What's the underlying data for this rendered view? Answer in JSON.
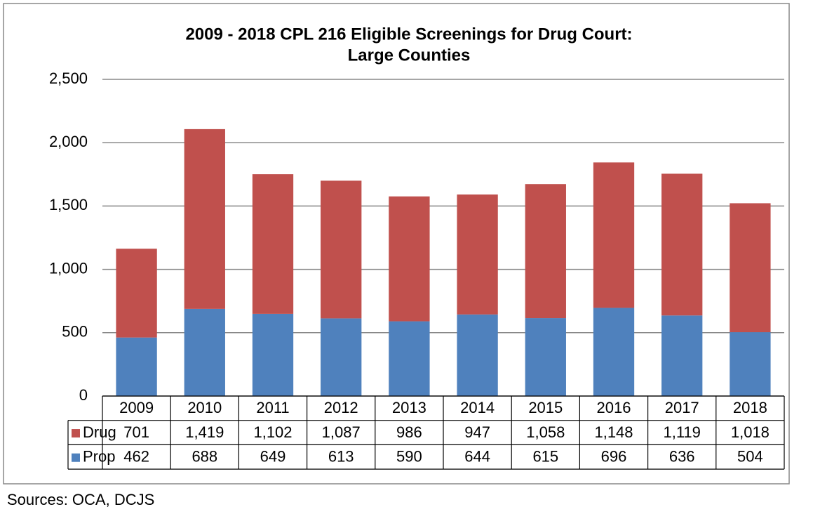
{
  "chart_data": {
    "type": "stacked_bar",
    "title": [
      "2009 - 2018 CPL 216 Eligible Screenings for Drug Court:",
      "Large Counties"
    ],
    "categories": [
      "2009",
      "2010",
      "2011",
      "2012",
      "2013",
      "2014",
      "2015",
      "2016",
      "2017",
      "2018"
    ],
    "series": [
      {
        "name": "Drug",
        "color": "#c0504d",
        "values": [
          701,
          1419,
          1102,
          1087,
          986,
          947,
          1058,
          1148,
          1119,
          1018
        ],
        "value_labels": [
          "701",
          "1,419",
          "1,102",
          "1,087",
          "986",
          "947",
          "1,058",
          "1,148",
          "1,119",
          "1,018"
        ]
      },
      {
        "name": "Prop",
        "color": "#4f81bd",
        "values": [
          462,
          688,
          649,
          613,
          590,
          644,
          615,
          696,
          636,
          504
        ]
      }
    ],
    "ylim": [
      0,
      2500
    ],
    "yticks": [
      0,
      500,
      {
        "value": 1000,
        "label": "1,000"
      },
      {
        "value": 1500,
        "label": "1,500"
      },
      {
        "value": 2000,
        "label": "2,000"
      },
      {
        "value": 2500,
        "label": "2,500"
      }
    ],
    "grid": true,
    "source": "Sources: OCA, DCJS"
  }
}
